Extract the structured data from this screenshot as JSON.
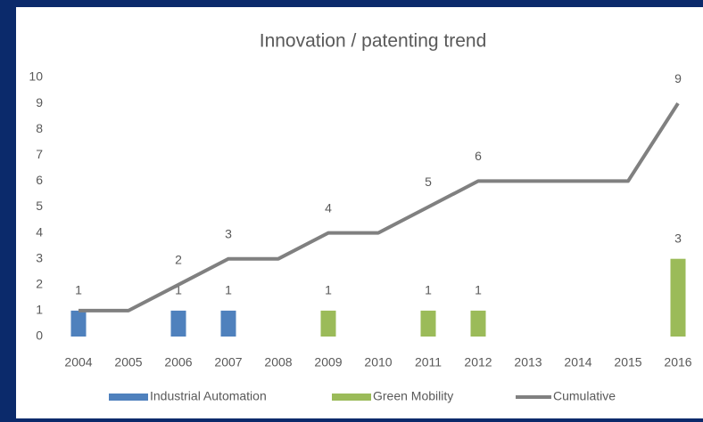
{
  "chart_data": {
    "type": "combo",
    "title": "Innovation / patenting trend",
    "categories": [
      "2004",
      "2005",
      "2006",
      "2007",
      "2008",
      "2009",
      "2010",
      "2011",
      "2012",
      "2013",
      "2014",
      "2015",
      "2016"
    ],
    "series": [
      {
        "name": "Industrial Automation",
        "type": "bar",
        "color": "#4f81bd",
        "values": [
          1,
          null,
          1,
          1,
          null,
          null,
          null,
          null,
          null,
          null,
          null,
          null,
          null
        ]
      },
      {
        "name": "Green Mobility",
        "type": "bar",
        "color": "#9bbb59",
        "values": [
          null,
          null,
          null,
          null,
          null,
          1,
          null,
          1,
          1,
          null,
          null,
          null,
          3
        ]
      },
      {
        "name": "Cumulative",
        "type": "line",
        "color": "#808080",
        "values": [
          1,
          1,
          2,
          3,
          3,
          4,
          4,
          5,
          6,
          6,
          6,
          6,
          9
        ],
        "value_labels": [
          null,
          null,
          "2",
          "3",
          null,
          "4",
          null,
          "5",
          "6",
          null,
          null,
          null,
          "9"
        ]
      }
    ],
    "ylim": [
      0,
      10
    ],
    "yticks": [
      0,
      1,
      2,
      3,
      4,
      5,
      6,
      7,
      8,
      9,
      10
    ],
    "grid": false,
    "legend": "bottom"
  }
}
